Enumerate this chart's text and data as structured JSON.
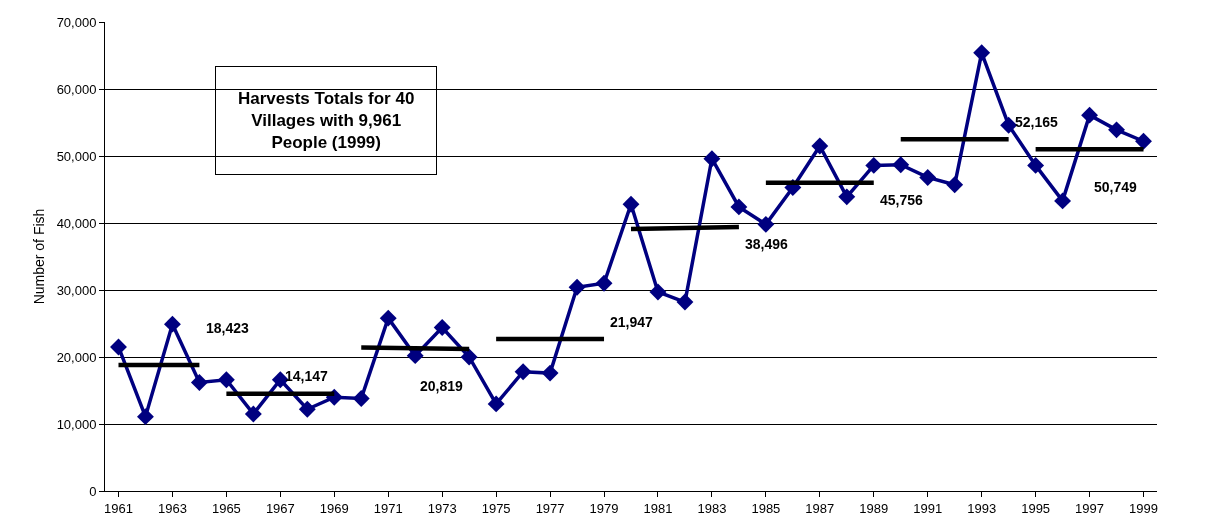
{
  "chart_data": {
    "type": "line",
    "title": "Harvests Totals for 40 Villages with 9,961 People (1999)",
    "ylabel": "Number of Fish",
    "x": [
      1961,
      1962,
      1963,
      1964,
      1965,
      1966,
      1967,
      1968,
      1969,
      1970,
      1971,
      1972,
      1973,
      1974,
      1975,
      1976,
      1977,
      1978,
      1979,
      1980,
      1981,
      1982,
      1983,
      1984,
      1985,
      1986,
      1987,
      1988,
      1989,
      1990,
      1991,
      1992,
      1993,
      1994,
      1995,
      1996,
      1997,
      1998,
      1999
    ],
    "series": [
      {
        "color": "#000080",
        "marker": "diamond",
        "values": [
          21500,
          11100,
          24900,
          16200,
          16600,
          11500,
          16600,
          12200,
          14000,
          13800,
          25800,
          20200,
          24400,
          20000,
          13000,
          17800,
          17600,
          30400,
          31000,
          42800,
          29700,
          28200,
          49600,
          42400,
          39800,
          45300,
          51500,
          43900,
          48600,
          48700,
          46800,
          45700,
          65400,
          54600,
          48600,
          43300,
          56100,
          53900,
          52200
        ]
      },
      {
        "type": "line",
        "color": "#000000",
        "marker": "none",
        "x": [
          1961,
          1964
        ],
        "values": [
          18800,
          18800
        ]
      },
      {
        "type": "line",
        "color": "#000000",
        "marker": "none",
        "x": [
          1965,
          1969
        ],
        "values": [
          14500,
          14500
        ]
      },
      {
        "type": "line",
        "color": "#000000",
        "marker": "none",
        "x": [
          1970,
          1974
        ],
        "values": [
          21400,
          21200
        ]
      },
      {
        "type": "line",
        "color": "#000000",
        "marker": "none",
        "x": [
          1975,
          1979
        ],
        "values": [
          22700,
          22700
        ]
      },
      {
        "type": "line",
        "color": "#000000",
        "marker": "none",
        "x": [
          1980,
          1984
        ],
        "values": [
          39100,
          39400
        ]
      },
      {
        "type": "line",
        "color": "#000000",
        "marker": "none",
        "x": [
          1985,
          1989
        ],
        "values": [
          46000,
          46000
        ]
      },
      {
        "type": "line",
        "color": "#000000",
        "marker": "none",
        "x": [
          1990,
          1994
        ],
        "values": [
          52500,
          52500
        ]
      },
      {
        "type": "line",
        "color": "#000000",
        "marker": "none",
        "x": [
          1995,
          1999
        ],
        "values": [
          51000,
          51000
        ]
      }
    ],
    "annotations": [
      {
        "text": "18,423",
        "x": 1964,
        "y": 18800
      },
      {
        "text": "14,147",
        "x": 1969,
        "y": 14500
      },
      {
        "text": "20,819",
        "x": 1974,
        "y": 21200
      },
      {
        "text": "21,947",
        "x": 1979,
        "y": 22700
      },
      {
        "text": "38,496",
        "x": 1984,
        "y": 39400
      },
      {
        "text": "45,756",
        "x": 1989,
        "y": 46000
      },
      {
        "text": "52,165",
        "x": 1994,
        "y": 52500
      },
      {
        "text": "50,749",
        "x": 1999,
        "y": 51000
      }
    ],
    "xlim": [
      1960.5,
      1999.5
    ],
    "xticks": [
      1961,
      1963,
      1965,
      1967,
      1969,
      1971,
      1973,
      1975,
      1977,
      1979,
      1981,
      1983,
      1985,
      1987,
      1989,
      1991,
      1993,
      1995,
      1997,
      1999
    ],
    "ylim": [
      0,
      70000
    ],
    "yticks": [
      {
        "value": 0,
        "label": "0"
      },
      {
        "value": 10000,
        "label": "10,000"
      },
      {
        "value": 20000,
        "label": "20,000"
      },
      {
        "value": 30000,
        "label": "30,000"
      },
      {
        "value": 40000,
        "label": "40,000"
      },
      {
        "value": 50000,
        "label": "50,000"
      },
      {
        "value": 60000,
        "label": "60,000"
      },
      {
        "value": 70000,
        "label": "70,000"
      }
    ],
    "grid": "y",
    "line_style": "solid"
  }
}
